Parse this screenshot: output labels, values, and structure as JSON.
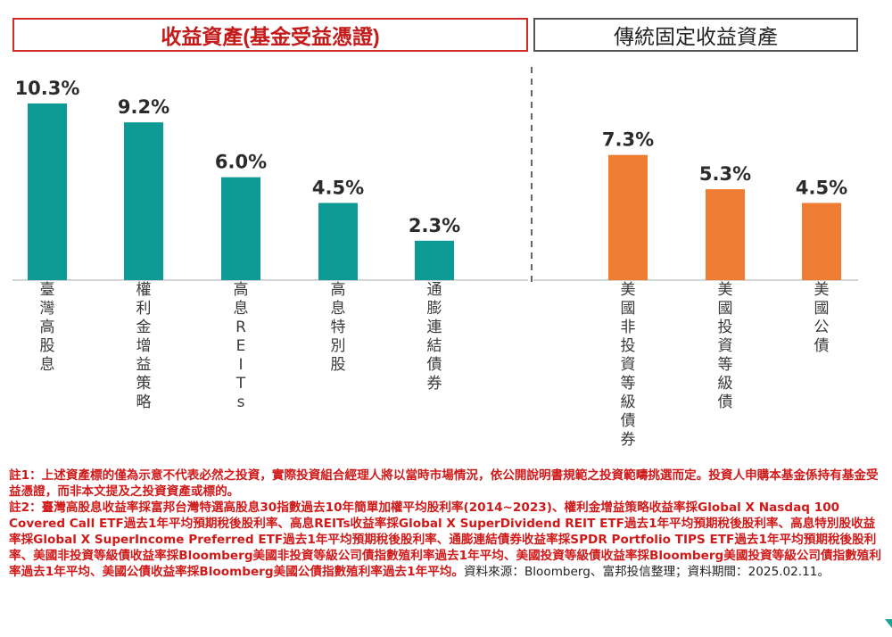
{
  "chart_data": {
    "type": "bar",
    "groups": [
      {
        "title": "收益資產(基金受益憑證)",
        "color": "#0e9a94",
        "categories": [
          "臺灣高股息",
          "權利金增益策略",
          "高息REITs",
          "高息特別股",
          "通膨連結債券"
        ],
        "values": [
          10.3,
          9.2,
          6.0,
          4.5,
          2.3
        ],
        "labels": [
          "10.3%",
          "9.2%",
          "6.0%",
          "4.5%",
          "2.3%"
        ]
      },
      {
        "title": "傳統固定收益資產",
        "color": "#ee7c32",
        "categories": [
          "美國非投資等級債券",
          "美國投資等級債",
          "美國公債"
        ],
        "values": [
          7.3,
          5.3,
          4.5
        ],
        "labels": [
          "7.3%",
          "5.3%",
          "4.5%"
        ]
      }
    ],
    "ylim": [
      0,
      10.3
    ],
    "grid": false,
    "separator": "dashed"
  },
  "notes": {
    "note1": "註1：上述資產標的僅為示意不代表必然之投資，實際投資組合經理人將以當時市場情況，依公開說明書規範之投資範疇挑選而定。投資人申購本基金係持有基金受益憑證，而非本文提及之投資資產或標的。",
    "note2": "註2：臺灣高股息收益率採富邦台灣特選高股息30指數過去10年簡單加權平均股利率(2014~2023)、權利金增益策略收益率採Global X Nasdaq 100 Covered Call ETF過去1年平均預期稅後股利率、高息REITs收益率採Global X SuperDividend REIT ETF過去1年平均預期稅後股利率、高息特別股收益率採Global X SuperIncome Preferred ETF過去1年平均預期稅後股利率、通膨連結債券收益率採SPDR Portfolio TIPS ETF過去1年平均預期稅後股利率、美國非投資等級債收益率採Bloomberg美國非投資等級公司債指數殖利率過去1年平均、美國投資等級債收益率採Bloomberg美國投資等級公司債指數殖利率過去1年平均、美國公債收益率採Bloomberg美國公債指數殖利率過去1年平均。",
    "source": "資料來源：Bloomberg、富邦投信整理；資料期間：2025.02.11。"
  }
}
